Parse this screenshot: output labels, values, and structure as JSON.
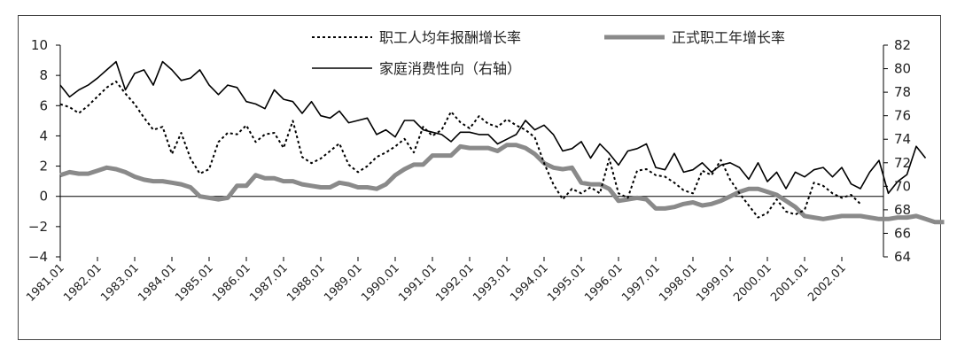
{
  "chart_data": {
    "type": "line",
    "x_start": "1981.01",
    "x_step": "quarter",
    "x_tick_labels": [
      "1981.01",
      "1982.01",
      "1983.01",
      "1984.01",
      "1985.01",
      "1986.01",
      "1987.01",
      "1988.01",
      "1989.01",
      "1990.01",
      "1991.01",
      "1992.01",
      "1993.01",
      "1994.01",
      "1995.01",
      "1996.01",
      "1997.01",
      "1998.01",
      "1999.01",
      "2000.01",
      "2001.01",
      "2002.01"
    ],
    "y_left": {
      "ticks": [
        "10",
        "8",
        "6",
        "4",
        "2",
        "0",
        "−2",
        "−4"
      ],
      "ylim": [
        -4,
        10
      ]
    },
    "y_right": {
      "ticks": [
        "82",
        "80",
        "78",
        "76",
        "74",
        "72",
        "70",
        "68",
        "66",
        "64"
      ],
      "ylim": [
        64,
        82
      ]
    },
    "legend": {
      "placement": "top-center",
      "entries": [
        "职工人均年报酬增长率",
        "正式职工年增长率",
        "家庭消费性向（右轴）"
      ]
    },
    "series": [
      {
        "name": "职工人均年报酬增长率",
        "axis": "left",
        "style": "dotted",
        "color": "#000000",
        "values": [
          6.1,
          5.9,
          5.5,
          6.0,
          6.6,
          7.2,
          7.6,
          6.8,
          6.1,
          5.2,
          4.4,
          4.6,
          2.8,
          4.2,
          2.5,
          1.5,
          1.8,
          3.6,
          4.2,
          4.1,
          4.7,
          3.6,
          4.1,
          4.2,
          3.2,
          5.0,
          2.6,
          2.2,
          2.5,
          3.0,
          3.5,
          2.1,
          1.6,
          2.0,
          2.6,
          2.9,
          3.3,
          3.8,
          2.9,
          4.6,
          4.0,
          4.4,
          5.6,
          4.9,
          4.5,
          5.3,
          4.8,
          4.6,
          5.1,
          4.7,
          4.4,
          3.9,
          2.2,
          0.8,
          -0.2,
          0.5,
          0.2,
          0.6,
          0.2,
          2.5,
          0.2,
          -0.1,
          1.7,
          1.8,
          1.4,
          1.3,
          0.9,
          0.4,
          0.2,
          1.7,
          1.4,
          2.4,
          1.1,
          0.2,
          -0.6,
          -1.4,
          -1.1,
          -0.2,
          -1.0,
          -1.2,
          -0.9,
          0.9,
          0.7,
          0.2,
          -0.1,
          0.1,
          -0.5
        ]
      },
      {
        "name": "正式职工年增长率",
        "axis": "left",
        "style": "solid-thick",
        "color": "#8a8a8a",
        "values": [
          1.4,
          1.6,
          1.5,
          1.5,
          1.7,
          1.9,
          1.8,
          1.6,
          1.3,
          1.1,
          1.0,
          1.0,
          0.9,
          0.8,
          0.6,
          0.0,
          -0.1,
          -0.2,
          -0.1,
          0.7,
          0.7,
          1.4,
          1.2,
          1.2,
          1.0,
          1.0,
          0.8,
          0.7,
          0.6,
          0.6,
          0.9,
          0.8,
          0.6,
          0.6,
          0.5,
          0.8,
          1.4,
          1.8,
          2.1,
          2.1,
          2.7,
          2.7,
          2.7,
          3.3,
          3.2,
          3.2,
          3.2,
          3.0,
          3.4,
          3.4,
          3.2,
          2.8,
          2.2,
          1.9,
          1.8,
          1.9,
          0.9,
          0.8,
          0.8,
          0.5,
          -0.3,
          -0.2,
          -0.1,
          -0.2,
          -0.8,
          -0.8,
          -0.7,
          -0.5,
          -0.4,
          -0.6,
          -0.5,
          -0.3,
          0.0,
          0.3,
          0.5,
          0.5,
          0.3,
          0.1,
          -0.3,
          -0.7,
          -1.3,
          -1.4,
          -1.5,
          -1.4,
          -1.3,
          -1.3,
          -1.3,
          -1.4,
          -1.5,
          -1.5,
          -1.4,
          -1.4,
          -1.3,
          -1.5,
          -1.7,
          -1.7
        ]
      },
      {
        "name": "家庭消费性向（右轴）",
        "axis": "right",
        "style": "solid",
        "color": "#000000",
        "values": [
          78.6,
          77.6,
          78.2,
          78.6,
          79.2,
          79.9,
          80.6,
          78.2,
          79.6,
          79.9,
          78.6,
          80.6,
          79.9,
          79.0,
          79.2,
          79.9,
          78.6,
          77.8,
          78.6,
          78.4,
          77.2,
          77.0,
          76.6,
          78.2,
          77.4,
          77.2,
          76.2,
          77.2,
          76.0,
          75.8,
          76.4,
          75.4,
          75.6,
          75.8,
          74.4,
          74.8,
          74.2,
          75.6,
          75.6,
          74.8,
          74.6,
          74.4,
          73.8,
          74.6,
          74.6,
          74.4,
          74.4,
          73.6,
          74.0,
          74.4,
          75.6,
          74.8,
          75.2,
          74.4,
          73.0,
          73.2,
          73.8,
          72.4,
          73.6,
          72.8,
          71.8,
          73.0,
          73.2,
          73.6,
          71.6,
          71.4,
          72.8,
          71.2,
          71.4,
          72.0,
          71.2,
          71.8,
          72.0,
          71.6,
          70.6,
          72.0,
          70.4,
          71.2,
          69.8,
          71.2,
          70.8,
          71.4,
          71.6,
          70.8,
          71.6,
          70.2,
          69.8,
          71.2,
          72.2,
          69.4,
          70.4,
          71.0,
          73.4,
          72.4
        ]
      }
    ]
  }
}
